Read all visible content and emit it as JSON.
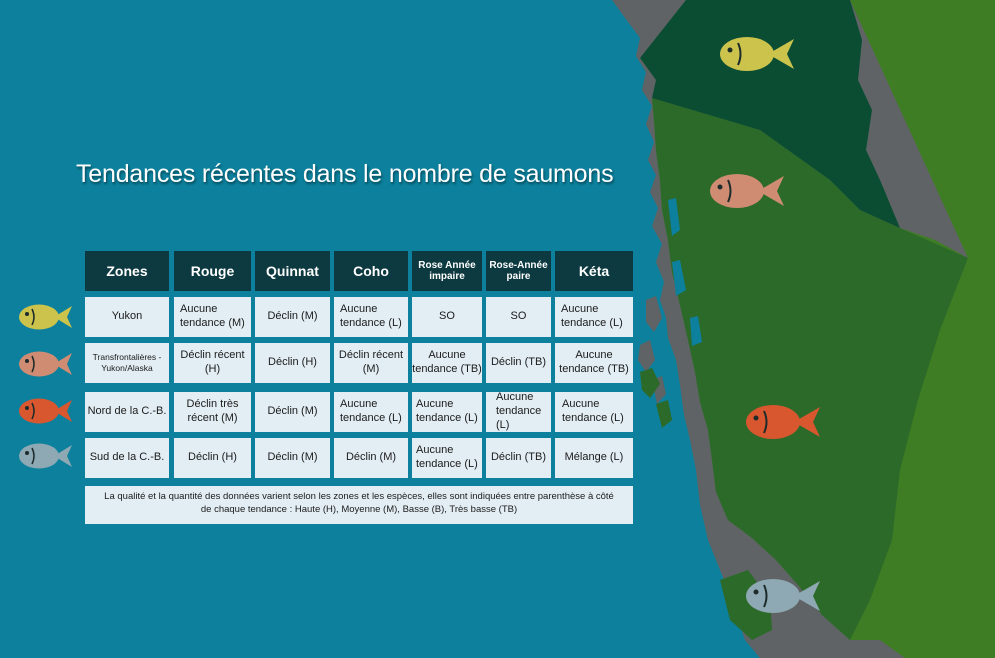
{
  "title": "Tendances récentes dans le nombre de saumons",
  "colors": {
    "ocean": "#0c809c",
    "land_grey": "#5f6365",
    "land_dark_green": "#0a4d33",
    "land_mid_green": "#2c6a2a",
    "land_light_green": "#3f7d24",
    "header_bg": "#0d3a41",
    "cell_bg": "#e3eef4",
    "fish_yukon": "#cbc34c",
    "fish_transfrontalieres": "#cf8c73",
    "fish_nord": "#d8572f",
    "fish_sud": "#8ea9b3"
  },
  "table": {
    "headers": [
      "Zones",
      "Rouge",
      "Quinnat",
      "Coho",
      "Rose Année impaire",
      "Rose-Année paire",
      "Kéta"
    ],
    "rows": [
      {
        "zone": "Yukon",
        "fish_icon": "yellow-fish-icon",
        "values": [
          "Aucune tendance (M)",
          "Déclin (M)",
          "Aucune tendance (L)",
          "SO",
          "SO",
          "Aucune tendance (L)"
        ]
      },
      {
        "zone": "Transfrontalières - Yukon/Alaska",
        "fish_icon": "pink-fish-icon",
        "values": [
          "Déclin récent (H)",
          "Déclin (H)",
          "Déclin récent (M)",
          "Aucune tendance (TB)",
          "Déclin (TB)",
          "Aucune tendance (TB)"
        ]
      },
      {
        "zone": "Nord de la C.-B.",
        "fish_icon": "orange-fish-icon",
        "values": [
          "Déclin très récent (M)",
          "Déclin (M)",
          "Aucune tendance (L)",
          "Aucune tendance (L)",
          "Aucune tendance (L)",
          "Aucune tendance (L)"
        ]
      },
      {
        "zone": "Sud de la C.-B.",
        "fish_icon": "grey-fish-icon",
        "values": [
          "Déclin (H)",
          "Déclin (M)",
          "Déclin (M)",
          "Aucune tendance (L)",
          "Déclin (TB)",
          "Mélange (L)"
        ]
      }
    ],
    "note": "La qualité et la quantité des données varient selon les zones et les espèces, elles sont indiquées entre parenthèse à côté de chaque tendance : Haute (H), Moyenne (M), Basse (B), Très basse (TB)"
  }
}
